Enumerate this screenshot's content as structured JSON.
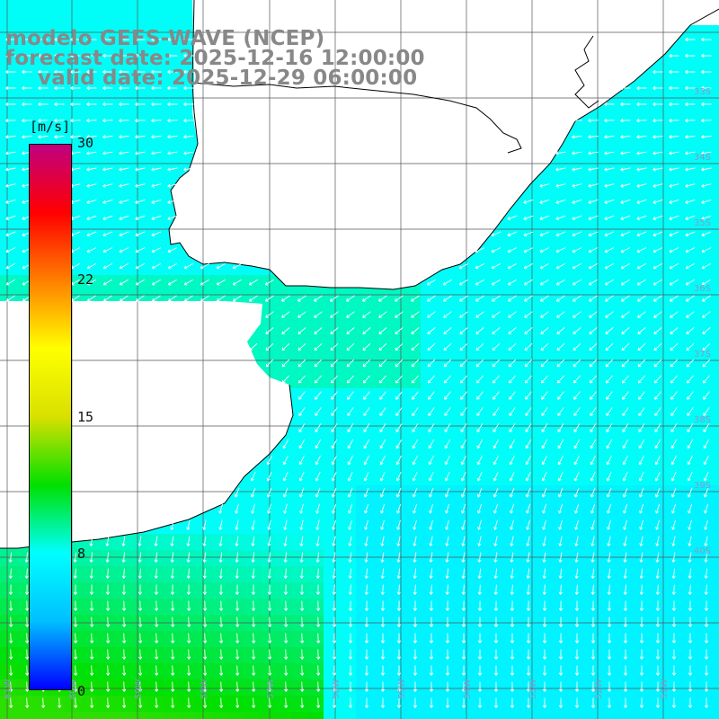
{
  "title": {
    "line1": "modelo GEFS-WAVE (NCEP)",
    "line2": "forecast date: 2025-12-16 12:00:00",
    "line3": "valid date: 2025-12-29 06:00:00"
  },
  "colorbar": {
    "unit": "[m/s]",
    "min": 0,
    "max": 30,
    "tick_labels": [
      "30",
      "22",
      "15",
      "8",
      "0"
    ],
    "tick_values": [
      30,
      22,
      15,
      8,
      0
    ],
    "colors": [
      "#0000ff",
      "#00bfff",
      "#00ffff",
      "#00e000",
      "#d8e000",
      "#ffff00",
      "#ff8000",
      "#ff0000",
      "#c00080"
    ]
  },
  "map": {
    "variable": "wind speed",
    "units": "m/s",
    "longitude_labels": [
      "61W",
      "60W",
      "59W",
      "58W",
      "57W",
      "56W",
      "55W",
      "54W",
      "53W",
      "52W",
      "51W"
    ],
    "latitude_labels": [
      "33S",
      "34S",
      "35S",
      "36S",
      "37S",
      "38S",
      "39S",
      "40S"
    ],
    "speed_range": [
      6,
      12
    ],
    "land_color": "#ffffff",
    "coastline_color": "#000000",
    "grid_color": "#555555",
    "arrow_color": "#ffffff"
  }
}
